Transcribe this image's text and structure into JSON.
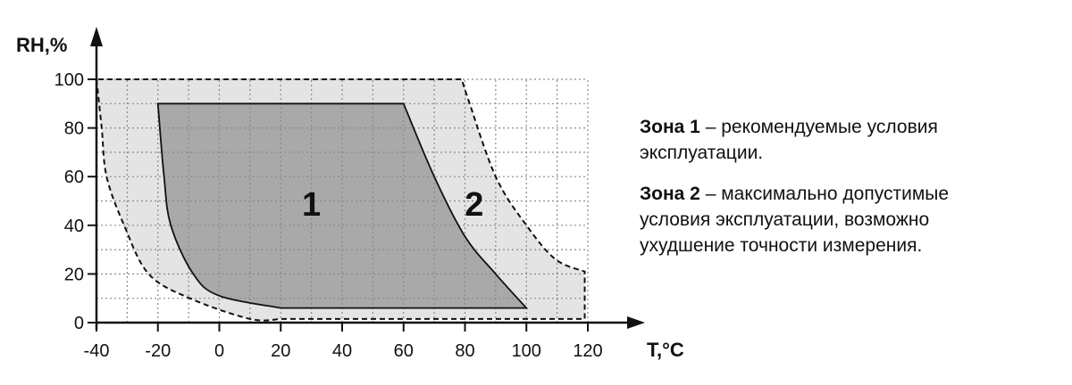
{
  "chart_data": {
    "type": "area",
    "xlabel": "T,°C",
    "ylabel": "RH,%",
    "xlim": [
      -40,
      120
    ],
    "ylim": [
      0,
      100
    ],
    "x_ticks": [
      -40,
      -20,
      0,
      20,
      40,
      60,
      80,
      100,
      120
    ],
    "y_ticks": [
      0,
      20,
      40,
      60,
      80,
      100
    ],
    "grid": true,
    "grid_step": {
      "x": 10,
      "y": 10
    },
    "colors": {
      "zone1": "#a9a9a9",
      "zone2": "#e4e4e4",
      "grid": "#8a8a8a"
    },
    "series": [
      {
        "name": "2",
        "style": "dashed",
        "left_curve": [
          [
            -40,
            100
          ],
          [
            -38.3,
            80
          ],
          [
            -36.7,
            60
          ],
          [
            -31,
            40
          ],
          [
            -23,
            20
          ],
          [
            -9.6,
            10
          ],
          [
            10,
            1.5
          ],
          [
            20,
            1.5
          ]
        ],
        "bottom": [
          [
            20,
            1.5
          ],
          [
            119,
            1.5
          ]
        ],
        "right_curve": [
          [
            119,
            1.5
          ],
          [
            119,
            21
          ],
          [
            109.5,
            26
          ],
          [
            100,
            40
          ],
          [
            90,
            60
          ],
          [
            81,
            92
          ],
          [
            79,
            100
          ]
        ],
        "top": [
          [
            79,
            100
          ],
          [
            -40,
            100
          ]
        ]
      },
      {
        "name": "1",
        "style": "solid",
        "left_curve": [
          [
            -20,
            90
          ],
          [
            -18,
            60
          ],
          [
            -15.8,
            40
          ],
          [
            -8.5,
            20
          ],
          [
            0,
            11
          ],
          [
            20,
            6
          ]
        ],
        "bottom": [
          [
            20,
            6
          ],
          [
            100,
            6
          ]
        ],
        "right_curve": [
          [
            100,
            6
          ],
          [
            90,
            20
          ],
          [
            80,
            35.4
          ],
          [
            70,
            60
          ],
          [
            60,
            90
          ]
        ],
        "top": [
          [
            60,
            90
          ],
          [
            -20,
            90
          ]
        ]
      }
    ]
  },
  "legend": {
    "zone1_title": "Зона 1",
    "zone1_text": " – рекомендуемые условия",
    "zone1_text2": "эксплуатации.",
    "zone2_title": "Зона 2",
    "zone2_text": " – максимально допустимые",
    "zone2_text2": "условия эксплуатации, возможно",
    "zone2_text3": "ухудшение точности измерения."
  }
}
